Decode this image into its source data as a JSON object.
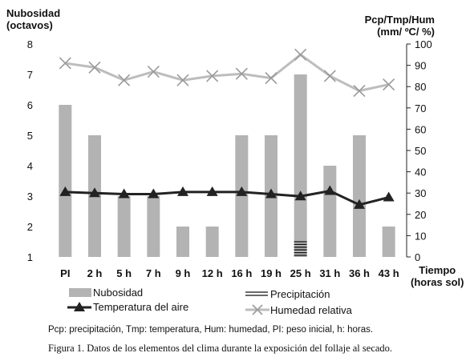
{
  "chart_data": {
    "type": "bar+line",
    "categories": [
      "PI",
      "2 h",
      "5 h",
      "7 h",
      "9 h",
      "12 h",
      "16 h",
      "19 h",
      "25 h",
      "31 h",
      "36 h",
      "43 h"
    ],
    "left_axis": {
      "title_line1": "Nubosidad",
      "title_line2": "(octavos)",
      "ylim": [
        1,
        8
      ],
      "ticks": [
        1,
        2,
        3,
        4,
        5,
        6,
        7,
        8
      ]
    },
    "right_axis": {
      "title_line1": "Pcp/Tmp/Hum",
      "title_line2": "(mm/ ºC/ %)",
      "ylim": [
        0,
        100
      ],
      "ticks": [
        0,
        10,
        20,
        30,
        40,
        50,
        60,
        70,
        80,
        90,
        100
      ]
    },
    "x_axis": {
      "title_line1": "Tiempo",
      "title_line2": "(horas sol)"
    },
    "series": [
      {
        "name": "Nubosidad",
        "kind": "bar",
        "axis": "left",
        "color": "#b3b3b3",
        "values": [
          6,
          5,
          3,
          3,
          2,
          2,
          5,
          5,
          7,
          4,
          5,
          2
        ]
      },
      {
        "name": "Precipitación",
        "kind": "hatched-bar",
        "axis": "right",
        "color": "#111111",
        "values": [
          0,
          0,
          0,
          0,
          0,
          0,
          0,
          0,
          8,
          0,
          0,
          0
        ]
      },
      {
        "name": "Temperatura del aire",
        "kind": "line-triangle",
        "axis": "right",
        "color": "#222222",
        "values": [
          30.5,
          30,
          29.5,
          29.5,
          30.5,
          30.5,
          30.5,
          29.5,
          28.5,
          31,
          24.5,
          28
        ]
      },
      {
        "name": "Humedad relativa",
        "kind": "line-x",
        "axis": "right",
        "color": "#bdbdbd",
        "values": [
          91,
          89,
          83,
          87,
          83,
          85,
          86,
          84,
          95,
          85,
          78,
          81
        ]
      }
    ],
    "legend_position": "bottom",
    "grid": false
  },
  "note": "Pcp: precipitación, Tmp: temperatura, Hum: humedad, PI: peso inicial, h: horas.",
  "caption": "Figura 1. Datos de los elementos del clima durante la exposición del follaje al secado."
}
